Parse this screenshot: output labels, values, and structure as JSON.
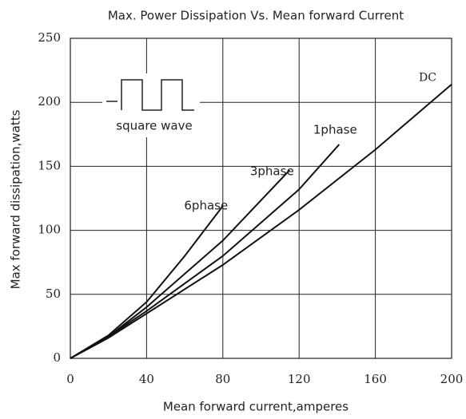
{
  "chart_data": {
    "type": "line",
    "title": "Max. Power Dissipation Vs. Mean forward Current",
    "x_label": "Mean forward current,amperes",
    "y_label": "Max forward dissipation,watts",
    "annotation": "square wave",
    "xlim": [
      0,
      200
    ],
    "xticks": [
      0,
      40,
      80,
      120,
      160,
      200
    ],
    "ylim": [
      0,
      250
    ],
    "yticks": [
      0,
      50,
      100,
      150,
      200,
      250
    ],
    "grid": true,
    "series": [
      {
        "name": "DC",
        "color": "#111111",
        "x": [
          0,
          20,
          40,
          80,
          120,
          160,
          200
        ],
        "values": [
          0,
          16,
          35,
          73,
          116,
          163,
          214
        ]
      },
      {
        "name": "1phase",
        "color": "#111111",
        "x": [
          0,
          20,
          40,
          80,
          120,
          141
        ],
        "values": [
          0,
          17,
          37,
          80,
          132,
          167
        ]
      },
      {
        "name": "3phase",
        "color": "#111111",
        "x": [
          0,
          20,
          40,
          80,
          115
        ],
        "values": [
          0,
          17,
          40,
          92,
          147
        ]
      },
      {
        "name": "6phase",
        "color": "#111111",
        "x": [
          0,
          20,
          40,
          60,
          80
        ],
        "values": [
          0,
          18,
          44,
          80,
          119
        ]
      }
    ]
  }
}
